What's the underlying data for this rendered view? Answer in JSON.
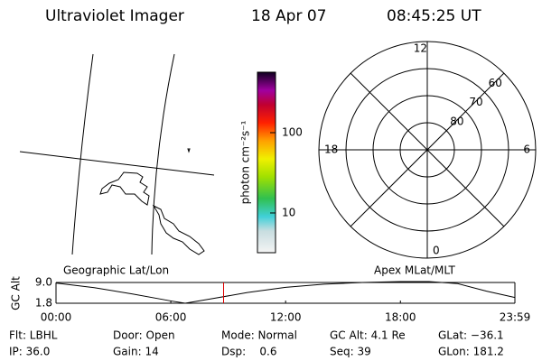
{
  "header": {
    "title": "Ultraviolet Imager",
    "date": "18 Apr 07",
    "time": "08:45:25 UT"
  },
  "colorbar": {
    "label": "photon cm⁻²s⁻¹",
    "log": true,
    "lim": [
      3.2,
      566
    ],
    "ticks": [
      10,
      100
    ]
  },
  "polar": {
    "rlim": [
      90,
      50
    ],
    "rings": [
      60,
      70,
      80
    ],
    "mlt_ticks": [
      12,
      6,
      0,
      18
    ]
  },
  "chart_data": {
    "type": "line",
    "y_label": "GC Alt",
    "annotations": [
      "Geographic Lat/Lon",
      "Apex MLat/MLT"
    ],
    "x": [
      0,
      2,
      4,
      6,
      6.75,
      8,
      10,
      12,
      14,
      16,
      18,
      19.5,
      21,
      22.5,
      23.983
    ],
    "series": [
      {
        "color": "#000000",
        "values": [
          8.8,
          7.2,
          5.0,
          2.6,
          1.8,
          3.2,
          5.5,
          7.3,
          8.4,
          9.0,
          9.3,
          9.3,
          8.6,
          6.0,
          3.8
        ]
      }
    ],
    "marker_x": 8.757,
    "marker_color": "#dd0000",
    "xlim": [
      0,
      23.983
    ],
    "ylim": [
      1.8,
      9.0
    ],
    "xticks": [
      {
        "value": 0,
        "label": "00:00"
      },
      {
        "value": 6,
        "label": "06:00"
      },
      {
        "value": 12,
        "label": "12:00"
      },
      {
        "value": 18,
        "label": "18:00"
      },
      {
        "value": 23.983,
        "label": "23:59"
      }
    ],
    "yticks": [
      {
        "value": 9.0,
        "label": "9.0"
      },
      {
        "value": 1.8,
        "label": "1.8"
      }
    ]
  },
  "footer": {
    "rows": [
      [
        "Flt: LBHL",
        "Door: Open",
        "Mode: Normal",
        "GC Alt: 4.1 Re",
        "GLat: −36.1"
      ],
      [
        "IP: 36.0",
        "Gain: 14",
        "Dsp:    0.6",
        "Seq: 39",
        "GLon: 181.2"
      ]
    ]
  }
}
